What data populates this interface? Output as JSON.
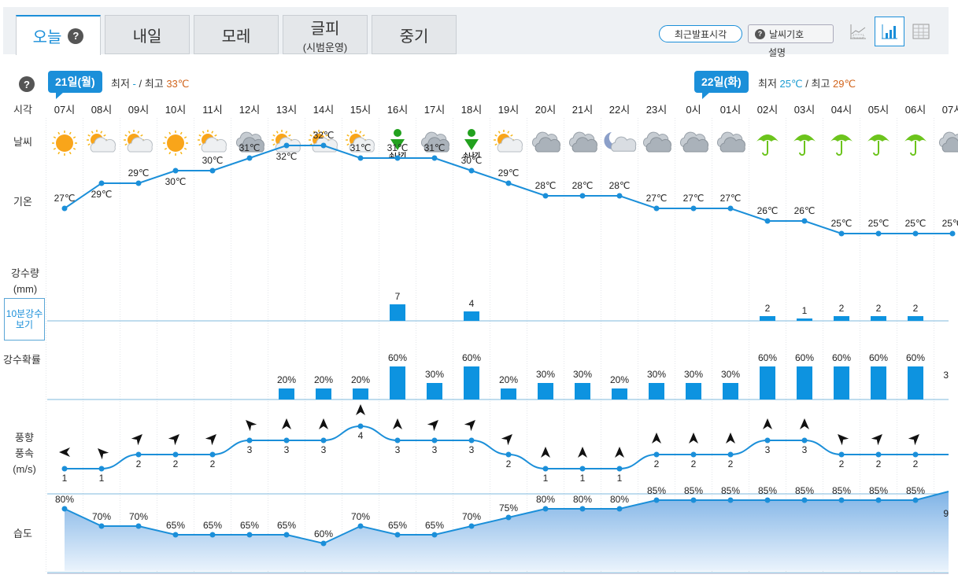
{
  "tabs": [
    {
      "label": "오늘",
      "help": "?",
      "active": true
    },
    {
      "label": "내일"
    },
    {
      "label": "모레"
    },
    {
      "label": "글피",
      "sub": "(시범운영)"
    },
    {
      "label": "중기"
    }
  ],
  "toolbar": {
    "recent_label": "최근발표시각",
    "symbol_label": "날씨기호",
    "symbol_desc": "설명",
    "view_icons": [
      "graph-icon",
      "bar-chart-icon",
      "table-icon"
    ]
  },
  "help": "?",
  "days": [
    {
      "label": "21일(월)",
      "lo_text": "최저",
      "lo": "-",
      "sep": "/",
      "hi_text": "최고",
      "hi": "33℃"
    },
    {
      "label": "22일(화)",
      "lo_text": "최저",
      "lo": "25℃",
      "sep": "/",
      "hi_text": "최고",
      "hi": "29℃"
    }
  ],
  "row_labels": {
    "time": "시각",
    "weather": "날씨",
    "temp": "기온",
    "rain": "강수량",
    "rain_unit": "(mm)",
    "tenmin": "10분강수보기",
    "prob": "강수확률",
    "wind_dir": "풍향",
    "wind_speed": "풍속",
    "wind_unit": "(m/s)",
    "humidity": "습도"
  },
  "colors": {
    "accent": "#1b8fd9",
    "bar": "#0d93e0",
    "low": "#1b9bd1",
    "high": "#d1641b",
    "umbrella": "#6cc41c",
    "shower": "#22a11e"
  },
  "hours": [
    "07시",
    "08시",
    "09시",
    "10시",
    "11시",
    "12시",
    "13시",
    "14시",
    "15시",
    "16시",
    "17시",
    "18시",
    "19시",
    "20시",
    "21시",
    "22시",
    "23시",
    "0시",
    "01시",
    "02시",
    "03시",
    "04시",
    "05시",
    "06시",
    "07시"
  ],
  "weather": [
    "sunny-icon",
    "partly-cloudy-icon",
    "partly-cloudy-icon",
    "sunny-icon",
    "partly-cloudy-icon",
    "cloudy-icon",
    "partly-cloudy-icon",
    "partly-cloudy-icon",
    "partly-cloudy-icon",
    "shower-icon",
    "cloudy-icon",
    "shower-icon",
    "partly-cloudy-icon",
    "cloudy-icon",
    "cloudy-icon",
    "night-cloudy-icon",
    "cloudy-icon",
    "cloudy-icon",
    "cloudy-icon",
    "umbrella-icon",
    "umbrella-icon",
    "umbrella-icon",
    "umbrella-icon",
    "umbrella-icon",
    "cloudy-icon"
  ],
  "shower_label": "소나기",
  "temps": [
    27,
    29,
    29,
    30,
    30,
    31,
    32,
    32,
    31,
    31,
    31,
    30,
    29,
    28,
    28,
    28,
    27,
    27,
    27,
    26,
    26,
    25,
    25,
    25,
    25
  ],
  "temp_unit": "℃",
  "rain": [
    "",
    "",
    "",
    "",
    "",
    "",
    "",
    "",
    "",
    "7",
    "",
    "4",
    "",
    "",
    "",
    "",
    "",
    "",
    "",
    "2",
    "1",
    "2",
    "2",
    "2",
    ""
  ],
  "prob": [
    null,
    null,
    null,
    null,
    null,
    null,
    20,
    20,
    20,
    60,
    30,
    60,
    20,
    30,
    30,
    20,
    30,
    30,
    30,
    60,
    60,
    60,
    60,
    60,
    null
  ],
  "prob_last_text": "3",
  "wind_speed": [
    1,
    1,
    2,
    2,
    2,
    3,
    3,
    3,
    4,
    3,
    3,
    3,
    2,
    1,
    1,
    1,
    2,
    2,
    2,
    3,
    3,
    2,
    2,
    2,
    null
  ],
  "wind_dir_deg": [
    270,
    315,
    45,
    45,
    45,
    315,
    0,
    0,
    0,
    0,
    45,
    45,
    45,
    0,
    0,
    0,
    0,
    0,
    0,
    0,
    0,
    315,
    45,
    45,
    null
  ],
  "humidity": [
    80,
    70,
    70,
    65,
    65,
    65,
    65,
    60,
    70,
    65,
    65,
    70,
    75,
    80,
    80,
    80,
    85,
    85,
    85,
    85,
    85,
    85,
    85,
    85,
    null
  ],
  "humidity_last_text": "9",
  "pct": "%"
}
